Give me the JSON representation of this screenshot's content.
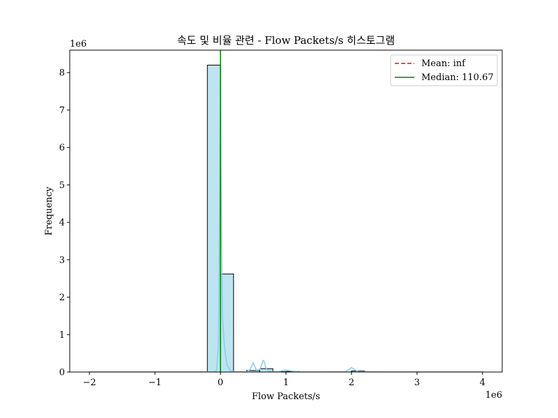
{
  "chart_data": {
    "type": "histogram",
    "title": "속도 및 비율 관련 - Flow Packets/s 히스토그램",
    "xlabel": "Flow Packets/s",
    "ylabel": "Frequency",
    "x_offset_text": "1e6",
    "y_offset_text": "1e6",
    "xlim": [
      -2300000,
      4300000
    ],
    "ylim": [
      0,
      8600000
    ],
    "x_scale_factor": 1000000,
    "y_scale_factor": 1000000,
    "xticks": [
      -2000000,
      -1000000,
      0,
      1000000,
      2000000,
      3000000,
      4000000
    ],
    "xtick_labels": [
      "−2",
      "−1",
      "0",
      "1",
      "2",
      "3",
      "4"
    ],
    "yticks": [
      0,
      1000000,
      2000000,
      3000000,
      4000000,
      5000000,
      6000000,
      7000000,
      8000000
    ],
    "ytick_labels": [
      "0",
      "1",
      "2",
      "3",
      "4",
      "5",
      "6",
      "7",
      "8"
    ],
    "bins": [
      {
        "x0": -2000000,
        "x1": -1800000,
        "count": 1000
      },
      {
        "x0": -1800000,
        "x1": -1600000,
        "count": 0
      },
      {
        "x0": -1600000,
        "x1": -1400000,
        "count": 0
      },
      {
        "x0": -1400000,
        "x1": -1200000,
        "count": 0
      },
      {
        "x0": -1200000,
        "x1": -1000000,
        "count": 0
      },
      {
        "x0": -1000000,
        "x1": -800000,
        "count": 0
      },
      {
        "x0": -800000,
        "x1": -600000,
        "count": 0
      },
      {
        "x0": -600000,
        "x1": -400000,
        "count": 0
      },
      {
        "x0": -400000,
        "x1": -200000,
        "count": 0
      },
      {
        "x0": -200000,
        "x1": 0,
        "count": 8200000
      },
      {
        "x0": 0,
        "x1": 200000,
        "count": 2620000
      },
      {
        "x0": 200000,
        "x1": 400000,
        "count": 5000
      },
      {
        "x0": 400000,
        "x1": 600000,
        "count": 40000
      },
      {
        "x0": 600000,
        "x1": 800000,
        "count": 90000
      },
      {
        "x0": 800000,
        "x1": 1000000,
        "count": 10000
      },
      {
        "x0": 1000000,
        "x1": 1200000,
        "count": 15000
      },
      {
        "x0": 1200000,
        "x1": 1400000,
        "count": 3000
      },
      {
        "x0": 1400000,
        "x1": 1600000,
        "count": 3000
      },
      {
        "x0": 1600000,
        "x1": 1800000,
        "count": 2000
      },
      {
        "x0": 1800000,
        "x1": 2000000,
        "count": 2000
      },
      {
        "x0": 2000000,
        "x1": 2200000,
        "count": 30000
      },
      {
        "x0": 2200000,
        "x1": 2400000,
        "count": 1000
      },
      {
        "x0": 2400000,
        "x1": 2600000,
        "count": 500
      },
      {
        "x0": 2600000,
        "x1": 2800000,
        "count": 500
      },
      {
        "x0": 2800000,
        "x1": 3000000,
        "count": 500
      },
      {
        "x0": 3000000,
        "x1": 3200000,
        "count": 500
      },
      {
        "x0": 3200000,
        "x1": 3400000,
        "count": 500
      },
      {
        "x0": 3400000,
        "x1": 3600000,
        "count": 500
      },
      {
        "x0": 3600000,
        "x1": 3800000,
        "count": 500
      },
      {
        "x0": 3800000,
        "x1": 4000000,
        "count": 1000
      }
    ],
    "kde": {
      "x": [
        -2000000,
        -1500000,
        -1000000,
        -500000,
        -200000,
        -100000,
        -60000,
        -30000,
        -10000,
        0,
        10000,
        30000,
        60000,
        100000,
        150000,
        200000,
        300000,
        400000,
        450000,
        480000,
        500000,
        520000,
        550000,
        600000,
        630000,
        650000,
        670000,
        690000,
        720000,
        800000,
        900000,
        950000,
        1000000,
        1050000,
        1200000,
        1500000,
        1900000,
        1960000,
        2000000,
        2040000,
        2100000,
        2500000,
        3000000,
        3500000,
        4000000
      ],
      "y": [
        5000,
        5000,
        5000,
        5000,
        5000,
        8000,
        30000,
        700000,
        5000000,
        8200000,
        5000000,
        1500000,
        700000,
        180000,
        40000,
        10000,
        5000,
        8000,
        60000,
        170000,
        250000,
        160000,
        50000,
        60000,
        200000,
        310000,
        270000,
        120000,
        40000,
        10000,
        15000,
        40000,
        55000,
        35000,
        8000,
        5000,
        10000,
        60000,
        120000,
        70000,
        15000,
        5000,
        5000,
        5000,
        5000
      ]
    },
    "mean_line": {
      "label": "Mean: inf",
      "value": null,
      "color": "#ff0000",
      "style": "dashed"
    },
    "median_line": {
      "label": "Median: 110.67",
      "value": 110.67,
      "color": "#008000",
      "style": "solid"
    },
    "legend": {
      "position": "top-right",
      "entries": [
        "Mean: inf",
        "Median: 110.67"
      ]
    },
    "colors": {
      "bar_fill": "#bde4f0",
      "bar_edge": "#000000",
      "kde": "#87ceeb"
    },
    "grid": false
  }
}
